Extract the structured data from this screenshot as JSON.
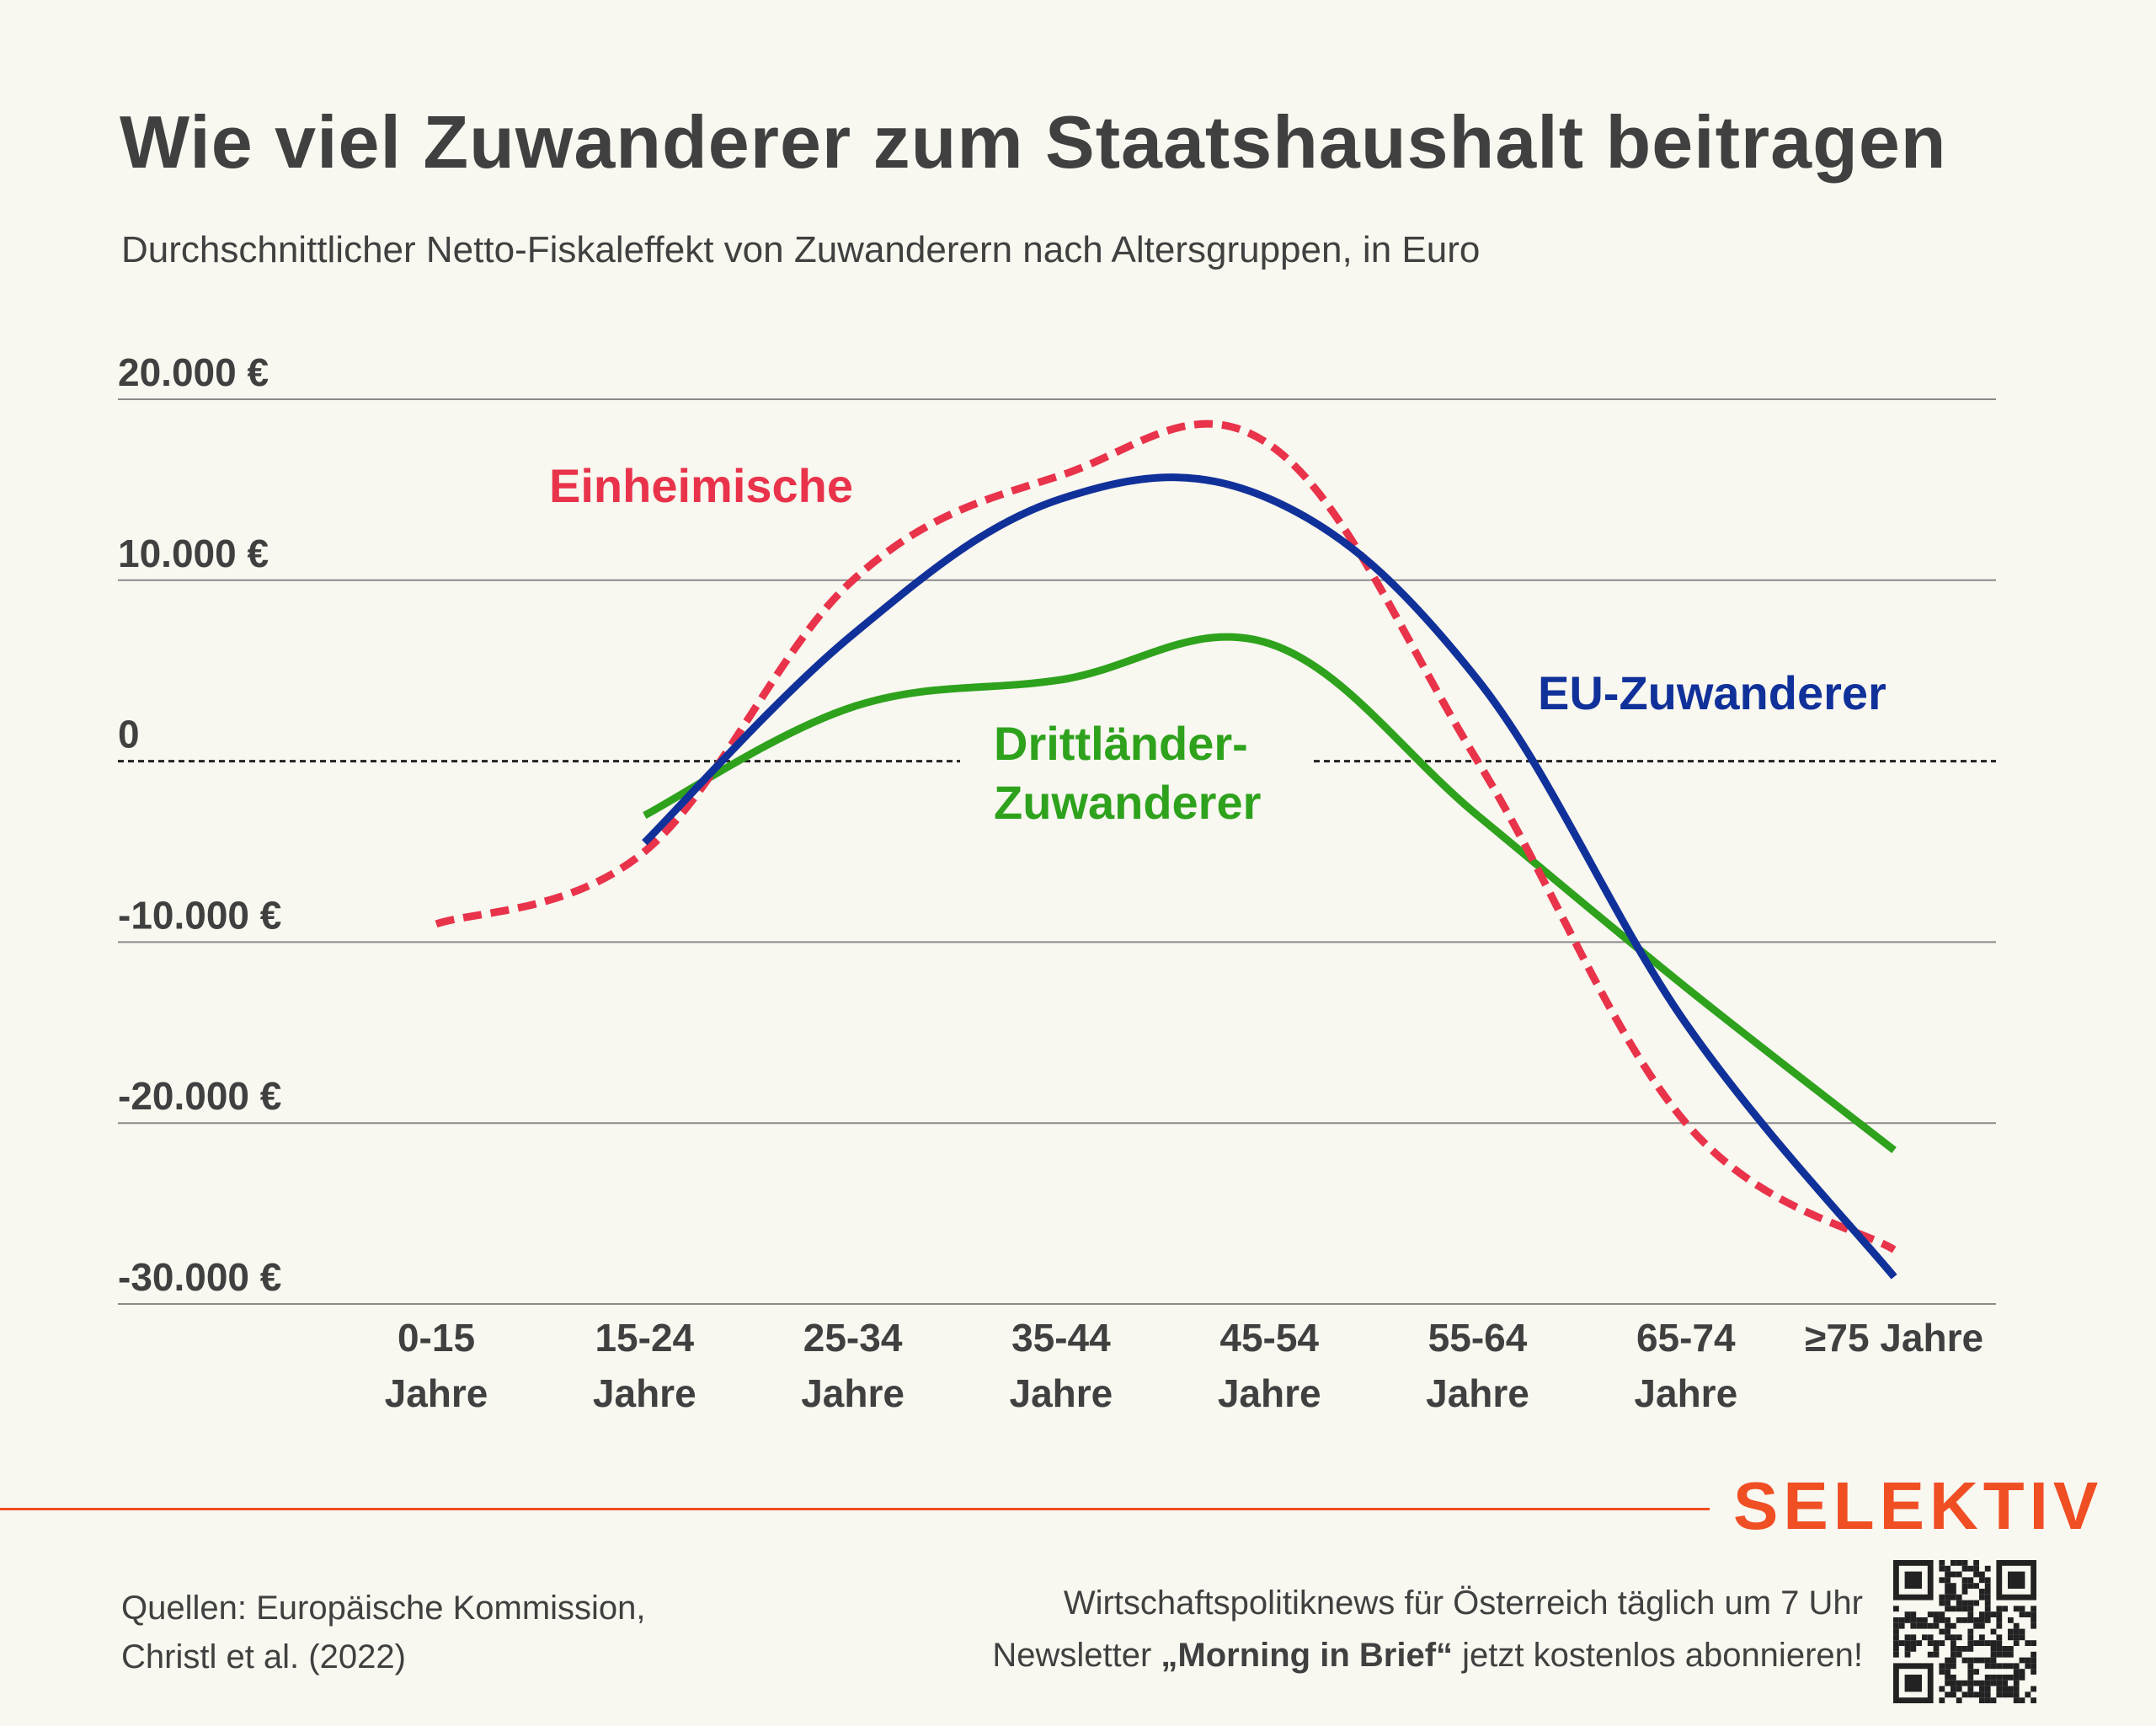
{
  "title": "Wie viel Zuwanderer zum Staatshaushalt beitragen",
  "subtitle": "Durchschnittlicher Netto-Fiskaleffekt von Zuwanderern nach Altersgruppen, in Euro",
  "chart_data": {
    "type": "line",
    "categories": [
      [
        "0-15",
        "Jahre"
      ],
      [
        "15-24",
        "Jahre"
      ],
      [
        "25-34",
        "Jahre"
      ],
      [
        "35-44",
        "Jahre"
      ],
      [
        "45-54",
        "Jahre"
      ],
      [
        "55-64",
        "Jahre"
      ],
      [
        "65-74",
        "Jahre"
      ],
      [
        "≥75 Jahre"
      ]
    ],
    "ylim": [
      -30000,
      20000
    ],
    "y_ticks": [
      {
        "value": 20000,
        "label": "20.000 €"
      },
      {
        "value": 10000,
        "label": "10.000 €"
      },
      {
        "value": 0,
        "label": "0"
      },
      {
        "value": -10000,
        "label": "-10.000 €"
      },
      {
        "value": -20000,
        "label": "-20.000 €"
      },
      {
        "value": -30000,
        "label": "-30.000 €"
      }
    ],
    "grid": true,
    "zero_line": "dashed",
    "series": [
      {
        "name": "Einheimische",
        "color": "#e8334a",
        "style": "dashed",
        "values": [
          -9000,
          -5000,
          10000,
          15800,
          17500,
          0,
          -20000,
          -27000
        ]
      },
      {
        "name": "EU-Zuwanderer",
        "color": "#11319a",
        "style": "solid",
        "values": [
          null,
          -4500,
          7000,
          14500,
          14500,
          4500,
          -14500,
          -28500
        ]
      },
      {
        "name": "Drittländer-Zuwanderer",
        "label_lines": [
          "Drittländer-",
          "Zuwanderer"
        ],
        "color": "#2ea21c",
        "style": "solid",
        "values": [
          null,
          -3000,
          3000,
          4500,
          6500,
          -3000,
          -12500,
          -21500
        ]
      }
    ]
  },
  "footer": {
    "brand": "SELEKTIV",
    "brand_color": "#f04e23",
    "sources_line1": "Quellen: Europäische Kommission,",
    "sources_line2": "Christl et al. (2022)",
    "promo_line1": "Wirtschaftspolitiknews für Österreich täglich um 7 Uhr",
    "promo_line2_a": "Newsletter ",
    "promo_line2_b": "„Morning in Brief“",
    "promo_line2_c": " jetzt kostenlos abonnieren!",
    "qr_icon": "qr-code-icon"
  }
}
